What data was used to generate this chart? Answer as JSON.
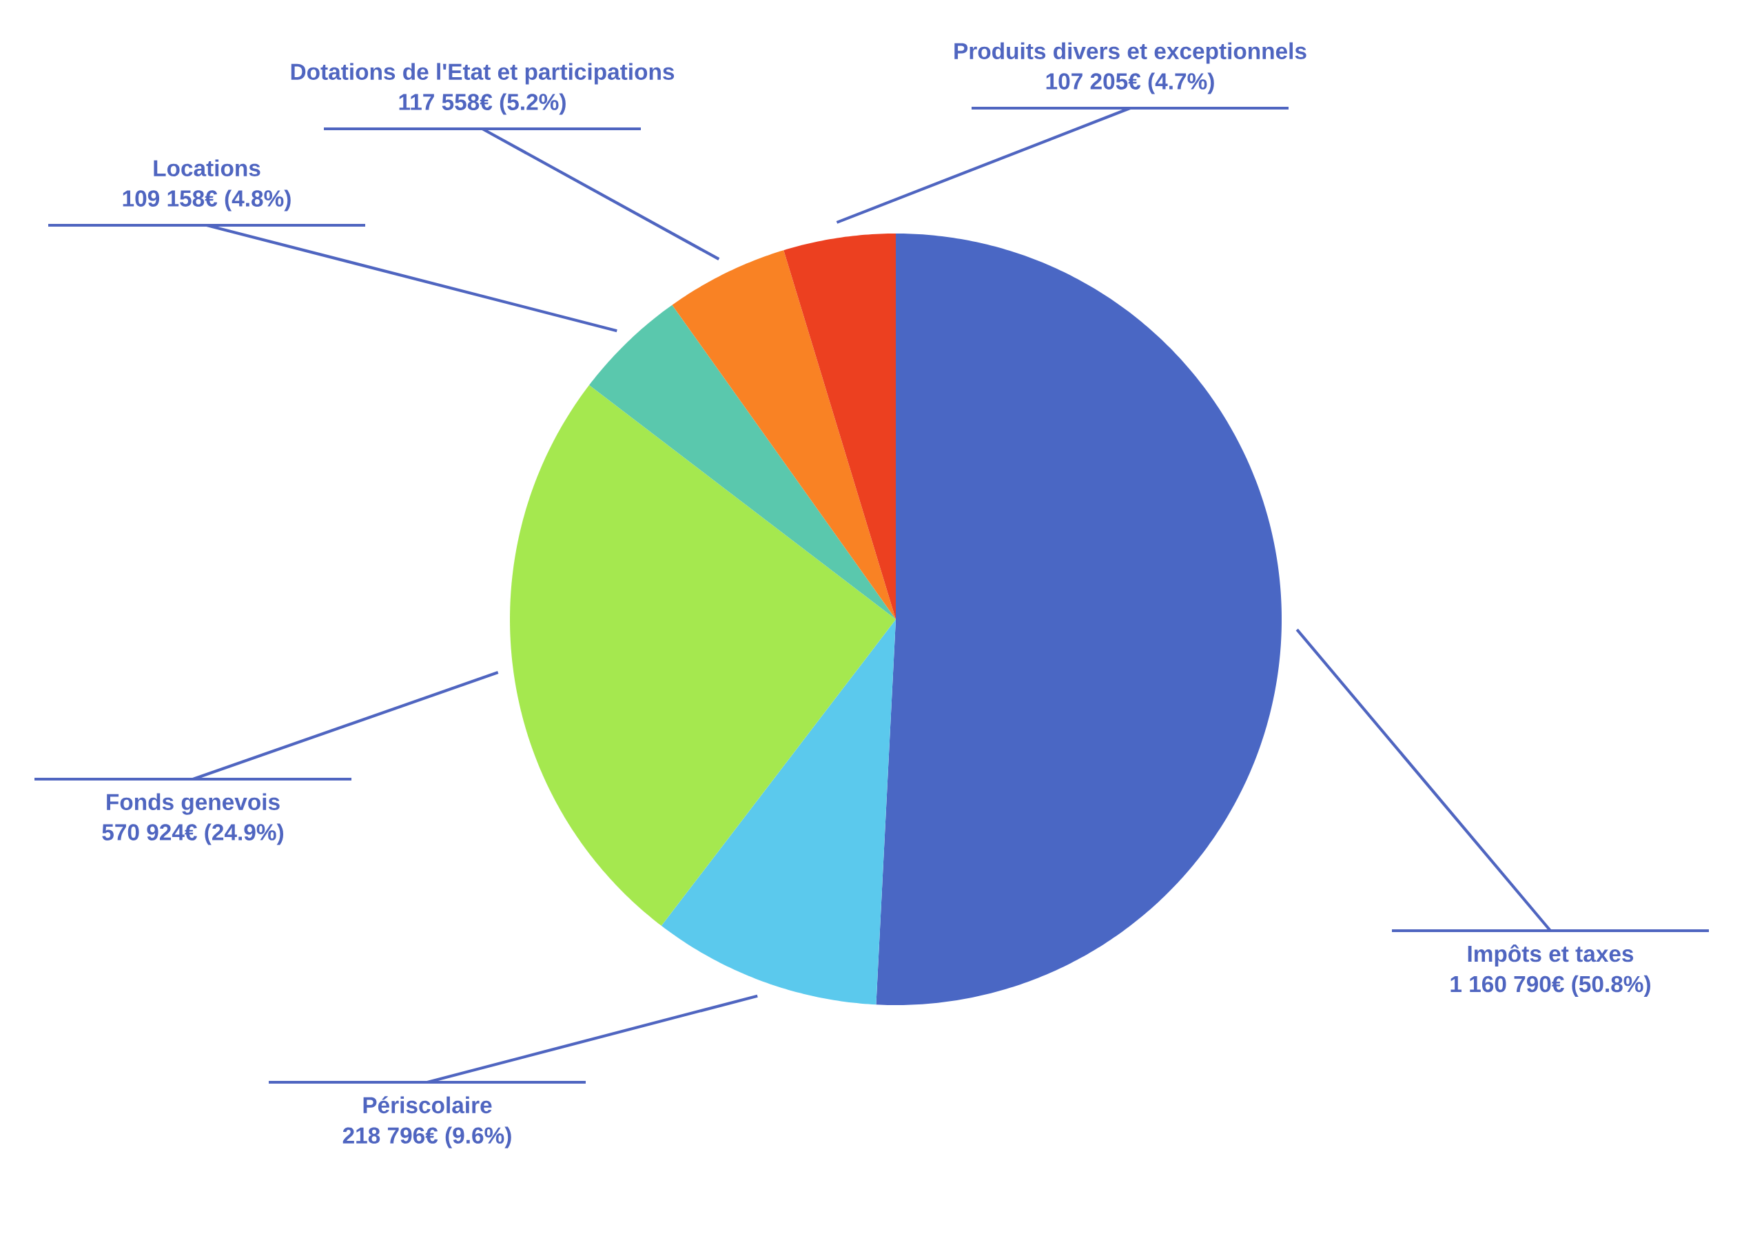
{
  "chart_data": {
    "type": "pie",
    "categories": [
      "Impôts et taxes",
      "Périscolaire",
      "Fonds genevois",
      "Locations",
      "Dotations de l'Etat et participations",
      "Produits divers et exceptionnels"
    ],
    "values": [
      1160790,
      218796,
      570924,
      109158,
      117558,
      107205
    ],
    "colors": [
      "#4a67c4",
      "#5bc9ed",
      "#a5e84f",
      "#5ac8ad",
      "#f98224",
      "#ec4020"
    ],
    "value_labels": [
      "1 160 790€ (50.8%)",
      "218 796€ (9.6%)",
      "570 924€ (24.9%)",
      "109 158€ (4.8%)",
      "117 558€ (5.2%)",
      "107 205€ (4.7%)"
    ]
  }
}
